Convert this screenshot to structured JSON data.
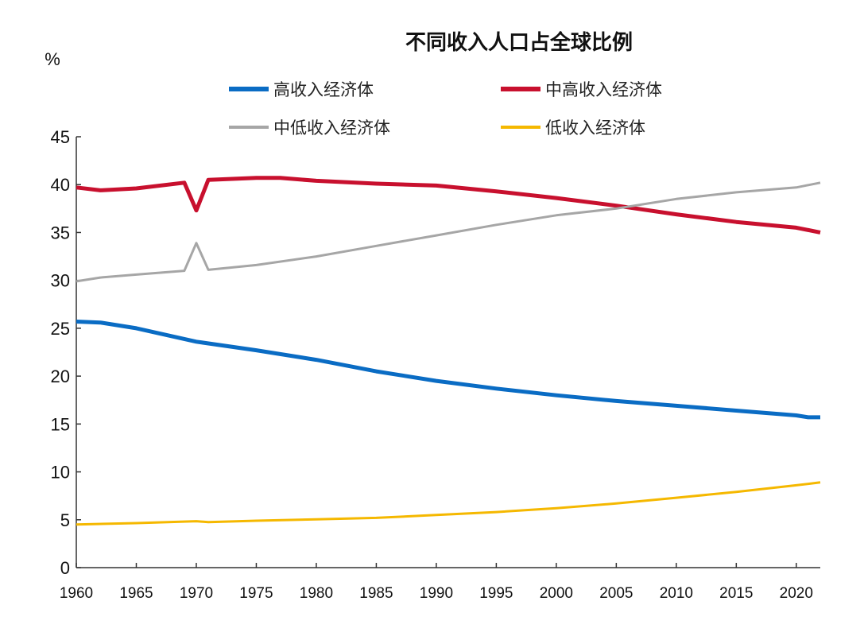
{
  "chart_data": {
    "type": "line",
    "title": "不同收入人口占全球比例",
    "ylabel": "%",
    "xlabel": "",
    "xlim": [
      1960,
      2022
    ],
    "ylim": [
      0,
      45
    ],
    "yticks": [
      0,
      5,
      10,
      15,
      20,
      25,
      30,
      35,
      40,
      45
    ],
    "xticks": [
      1960,
      1965,
      1970,
      1975,
      1980,
      1985,
      1990,
      1995,
      2000,
      2005,
      2010,
      2015,
      2020
    ],
    "grid": false,
    "legend_position": "top",
    "series": [
      {
        "name": "高收入经济体",
        "color": "#0a6cc4",
        "width": 5,
        "x": [
          1960,
          1962,
          1965,
          1970,
          1975,
          1980,
          1985,
          1990,
          1995,
          2000,
          2005,
          2010,
          2015,
          2020,
          2021,
          2022
        ],
        "y": [
          25.7,
          25.6,
          25.0,
          23.6,
          22.7,
          21.7,
          20.5,
          19.5,
          18.7,
          18.0,
          17.4,
          16.9,
          16.4,
          15.9,
          15.7,
          15.7
        ]
      },
      {
        "name": "中高收入经济体",
        "color": "#c8102e",
        "width": 5,
        "x": [
          1960,
          1962,
          1965,
          1969,
          1970,
          1971,
          1975,
          1977,
          1980,
          1985,
          1990,
          1995,
          2000,
          2005,
          2010,
          2015,
          2020,
          2022
        ],
        "y": [
          39.7,
          39.4,
          39.6,
          40.2,
          37.3,
          40.5,
          40.7,
          40.7,
          40.4,
          40.1,
          39.9,
          39.3,
          38.6,
          37.8,
          36.9,
          36.1,
          35.5,
          35.0
        ]
      },
      {
        "name": "中低收入经济体",
        "color": "#a6a6a6",
        "width": 3,
        "x": [
          1960,
          1962,
          1965,
          1969,
          1970,
          1971,
          1975,
          1980,
          1985,
          1990,
          1995,
          2000,
          2005,
          2010,
          2015,
          2020,
          2022
        ],
        "y": [
          29.9,
          30.3,
          30.6,
          31.0,
          33.9,
          31.1,
          31.6,
          32.5,
          33.6,
          34.7,
          35.8,
          36.8,
          37.5,
          38.5,
          39.2,
          39.7,
          40.2
        ]
      },
      {
        "name": "低收入经济体",
        "color": "#f5b800",
        "width": 3,
        "x": [
          1960,
          1965,
          1970,
          1971,
          1975,
          1980,
          1985,
          1990,
          1995,
          2000,
          2005,
          2010,
          2015,
          2020,
          2022
        ],
        "y": [
          4.5,
          4.65,
          4.85,
          4.75,
          4.9,
          5.05,
          5.2,
          5.5,
          5.8,
          6.2,
          6.7,
          7.3,
          7.9,
          8.6,
          8.9
        ]
      }
    ]
  }
}
